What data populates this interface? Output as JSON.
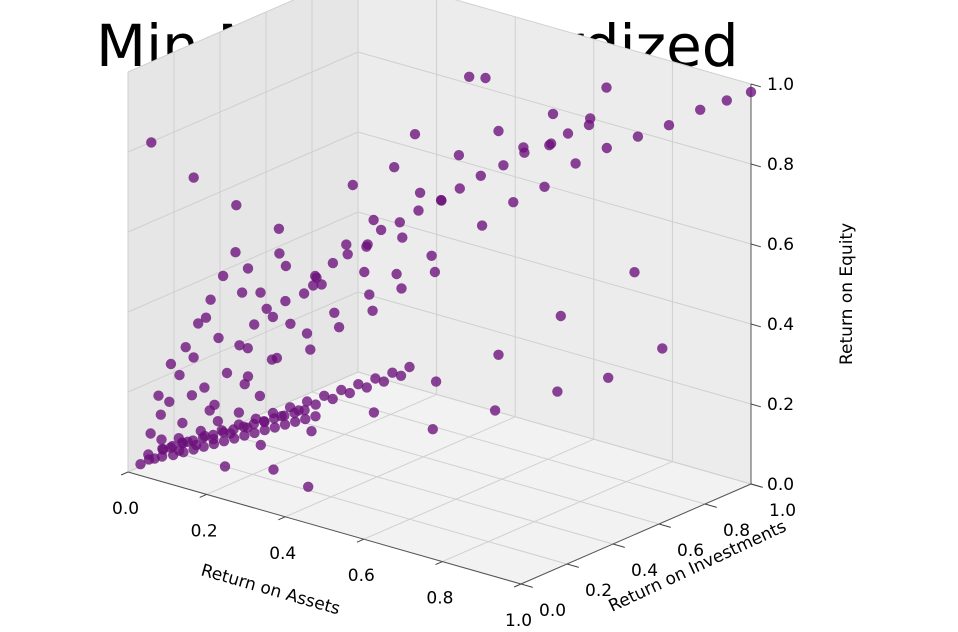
{
  "chart_data": {
    "type": "scatter",
    "projection": "3d",
    "title": "Min Max Standardized",
    "xlabel": "Return on Assets",
    "ylabel": "Return on Investments",
    "zlabel": "Return on Equity",
    "xlim": [
      0,
      1
    ],
    "ylim": [
      0,
      1
    ],
    "zlim": [
      0,
      1
    ],
    "grid": true,
    "marker_color": "#6a0f7a",
    "pane_color": "#f2f2f2",
    "grid_color": "#d0d0d0",
    "x_ticks": [
      "0.0",
      "0.2",
      "0.4",
      "0.6",
      "0.8",
      "1.0"
    ],
    "y_ticks": [
      "0.0",
      "0.2",
      "0.4",
      "0.6",
      "0.8",
      "1.0"
    ],
    "z_ticks": [
      "0.0",
      "0.2",
      "0.4",
      "0.6",
      "0.8",
      "1.0"
    ],
    "points": [
      [
        0.05,
        0.06,
        0.08
      ],
      [
        0.08,
        0.1,
        0.12
      ],
      [
        0.1,
        0.05,
        0.1
      ],
      [
        0.12,
        0.15,
        0.15
      ],
      [
        0.15,
        0.12,
        0.18
      ],
      [
        0.18,
        0.2,
        0.22
      ],
      [
        0.2,
        0.18,
        0.25
      ],
      [
        0.22,
        0.25,
        0.28
      ],
      [
        0.25,
        0.22,
        0.3
      ],
      [
        0.28,
        0.3,
        0.35
      ],
      [
        0.3,
        0.28,
        0.32
      ],
      [
        0.32,
        0.35,
        0.4
      ],
      [
        0.35,
        0.32,
        0.38
      ],
      [
        0.38,
        0.4,
        0.45
      ],
      [
        0.4,
        0.38,
        0.42
      ],
      [
        0.42,
        0.45,
        0.5
      ],
      [
        0.45,
        0.42,
        0.48
      ],
      [
        0.48,
        0.5,
        0.55
      ],
      [
        0.5,
        0.48,
        0.52
      ],
      [
        0.55,
        0.6,
        0.62
      ],
      [
        0.6,
        0.65,
        0.68
      ],
      [
        0.65,
        0.7,
        0.72
      ],
      [
        0.7,
        0.75,
        0.78
      ],
      [
        0.75,
        0.8,
        0.82
      ],
      [
        0.8,
        0.85,
        0.85
      ],
      [
        0.85,
        0.9,
        0.88
      ],
      [
        0.9,
        0.95,
        0.92
      ],
      [
        0.95,
        0.98,
        0.95
      ],
      [
        1.0,
        1.0,
        0.98
      ],
      [
        0.12,
        0.6,
        0.35
      ],
      [
        0.2,
        0.7,
        0.45
      ],
      [
        0.3,
        0.85,
        0.55
      ],
      [
        0.45,
        0.95,
        0.7
      ],
      [
        0.55,
        0.9,
        0.75
      ],
      [
        0.62,
        0.95,
        0.82
      ],
      [
        0.15,
        0.4,
        0.55
      ],
      [
        0.1,
        0.3,
        0.62
      ],
      [
        0.05,
        0.2,
        0.7
      ],
      [
        0.25,
        0.55,
        0.65
      ],
      [
        0.35,
        0.65,
        0.78
      ],
      [
        0.4,
        0.8,
        0.9
      ],
      [
        0.5,
        0.7,
        0.95
      ],
      [
        0.18,
        0.85,
        0.6
      ],
      [
        0.08,
        0.55,
        0.4
      ],
      [
        0.03,
        0.05,
        0.82
      ],
      [
        0.6,
        0.3,
        0.2
      ],
      [
        0.7,
        0.4,
        0.25
      ],
      [
        0.8,
        0.5,
        0.3
      ],
      [
        0.9,
        0.55,
        0.35
      ],
      [
        0.95,
        0.7,
        0.4
      ],
      [
        0.85,
        0.75,
        0.55
      ],
      [
        0.75,
        0.6,
        0.45
      ],
      [
        0.65,
        0.5,
        0.35
      ],
      [
        0.55,
        0.4,
        0.28
      ],
      [
        0.45,
        0.3,
        0.2
      ],
      [
        0.35,
        0.2,
        0.15
      ],
      [
        0.25,
        0.15,
        0.1
      ],
      [
        0.4,
        0.1,
        0.05
      ],
      [
        0.3,
        0.12,
        0.06
      ],
      [
        0.2,
        0.08,
        0.05
      ],
      [
        0.22,
        0.12,
        0.48
      ],
      [
        0.28,
        0.18,
        0.58
      ],
      [
        0.33,
        0.25,
        0.52
      ],
      [
        0.38,
        0.3,
        0.6
      ],
      [
        0.42,
        0.35,
        0.66
      ],
      [
        0.48,
        0.45,
        0.72
      ],
      [
        0.52,
        0.55,
        0.8
      ],
      [
        0.58,
        0.62,
        0.86
      ],
      [
        0.66,
        0.72,
        0.9
      ],
      [
        0.72,
        0.85,
        0.95
      ],
      [
        0.12,
        0.08,
        0.3
      ],
      [
        0.14,
        0.1,
        0.4
      ],
      [
        0.16,
        0.12,
        0.35
      ],
      [
        0.09,
        0.07,
        0.25
      ],
      [
        0.11,
        0.09,
        0.2
      ],
      [
        0.06,
        0.04,
        0.15
      ],
      [
        0.04,
        0.03,
        0.1
      ],
      [
        0.07,
        0.06,
        0.18
      ],
      [
        0.13,
        0.11,
        0.22
      ],
      [
        0.17,
        0.14,
        0.26
      ],
      [
        0.19,
        0.16,
        0.33
      ],
      [
        0.21,
        0.19,
        0.38
      ],
      [
        0.23,
        0.21,
        0.42
      ],
      [
        0.26,
        0.24,
        0.44
      ],
      [
        0.29,
        0.27,
        0.46
      ],
      [
        0.31,
        0.29,
        0.5
      ],
      [
        0.34,
        0.31,
        0.54
      ],
      [
        0.36,
        0.34,
        0.56
      ],
      [
        0.39,
        0.37,
        0.58
      ],
      [
        0.41,
        0.4,
        0.62
      ],
      [
        0.44,
        0.43,
        0.64
      ],
      [
        0.47,
        0.46,
        0.67
      ],
      [
        0.51,
        0.49,
        0.7
      ],
      [
        0.54,
        0.52,
        0.73
      ],
      [
        0.57,
        0.56,
        0.76
      ],
      [
        0.61,
        0.59,
        0.79
      ],
      [
        0.64,
        0.63,
        0.82
      ],
      [
        0.68,
        0.67,
        0.84
      ],
      [
        0.71,
        0.7,
        0.87
      ],
      [
        0.74,
        0.74,
        0.89
      ],
      [
        0.1,
        0.35,
        0.25
      ],
      [
        0.15,
        0.45,
        0.3
      ],
      [
        0.2,
        0.5,
        0.4
      ],
      [
        0.25,
        0.6,
        0.42
      ],
      [
        0.3,
        0.68,
        0.5
      ],
      [
        0.05,
        0.15,
        0.05
      ],
      [
        0.08,
        0.18,
        0.08
      ],
      [
        0.1,
        0.22,
        0.1
      ],
      [
        0.13,
        0.26,
        0.12
      ],
      [
        0.16,
        0.3,
        0.16
      ],
      [
        0.02,
        0.02,
        0.02
      ],
      [
        0.03,
        0.04,
        0.03
      ],
      [
        0.04,
        0.02,
        0.05
      ],
      [
        0.05,
        0.03,
        0.04
      ],
      [
        0.06,
        0.05,
        0.06
      ],
      [
        0.07,
        0.03,
        0.07
      ],
      [
        0.08,
        0.06,
        0.05
      ],
      [
        0.09,
        0.04,
        0.08
      ],
      [
        0.1,
        0.07,
        0.06
      ],
      [
        0.11,
        0.05,
        0.09
      ],
      [
        0.12,
        0.08,
        0.07
      ],
      [
        0.13,
        0.06,
        0.1
      ],
      [
        0.14,
        0.09,
        0.08
      ],
      [
        0.15,
        0.07,
        0.11
      ],
      [
        0.16,
        0.1,
        0.09
      ],
      [
        0.17,
        0.08,
        0.12
      ],
      [
        0.18,
        0.11,
        0.1
      ],
      [
        0.19,
        0.09,
        0.13
      ],
      [
        0.2,
        0.12,
        0.11
      ],
      [
        0.21,
        0.1,
        0.14
      ],
      [
        0.22,
        0.13,
        0.12
      ],
      [
        0.23,
        0.11,
        0.15
      ],
      [
        0.24,
        0.14,
        0.13
      ],
      [
        0.25,
        0.12,
        0.16
      ],
      [
        0.26,
        0.15,
        0.14
      ],
      [
        0.27,
        0.13,
        0.17
      ],
      [
        0.28,
        0.16,
        0.15
      ],
      [
        0.29,
        0.14,
        0.18
      ],
      [
        0.3,
        0.17,
        0.16
      ],
      [
        0.31,
        0.15,
        0.19
      ],
      [
        0.32,
        0.18,
        0.17
      ],
      [
        0.33,
        0.16,
        0.2
      ],
      [
        0.34,
        0.19,
        0.18
      ],
      [
        0.35,
        0.17,
        0.21
      ],
      [
        0.36,
        0.2,
        0.19
      ],
      [
        0.04,
        0.08,
        0.03
      ],
      [
        0.05,
        0.1,
        0.05
      ],
      [
        0.06,
        0.12,
        0.04
      ],
      [
        0.07,
        0.14,
        0.06
      ],
      [
        0.08,
        0.16,
        0.05
      ],
      [
        0.09,
        0.18,
        0.07
      ],
      [
        0.1,
        0.2,
        0.06
      ],
      [
        0.11,
        0.22,
        0.08
      ],
      [
        0.12,
        0.24,
        0.07
      ],
      [
        0.13,
        0.26,
        0.09
      ],
      [
        0.14,
        0.28,
        0.08
      ],
      [
        0.15,
        0.3,
        0.1
      ],
      [
        0.16,
        0.32,
        0.09
      ],
      [
        0.17,
        0.34,
        0.11
      ],
      [
        0.18,
        0.36,
        0.1
      ],
      [
        0.19,
        0.38,
        0.12
      ],
      [
        0.2,
        0.4,
        0.11
      ],
      [
        0.21,
        0.42,
        0.13
      ],
      [
        0.22,
        0.44,
        0.12
      ],
      [
        0.23,
        0.46,
        0.14
      ],
      [
        0.24,
        0.48,
        0.13
      ],
      [
        0.25,
        0.5,
        0.15
      ],
      [
        0.26,
        0.52,
        0.14
      ],
      [
        0.27,
        0.54,
        0.16
      ],
      [
        0.28,
        0.56,
        0.15
      ],
      [
        0.29,
        0.58,
        0.17
      ],
      [
        0.3,
        0.6,
        0.16
      ],
      [
        0.31,
        0.62,
        0.18
      ],
      [
        0.32,
        0.64,
        0.17
      ],
      [
        0.33,
        0.66,
        0.19
      ],
      [
        0.06,
        0.03,
        0.2
      ],
      [
        0.08,
        0.05,
        0.28
      ],
      [
        0.1,
        0.08,
        0.32
      ],
      [
        0.12,
        0.1,
        0.38
      ],
      [
        0.14,
        0.12,
        0.44
      ],
      [
        0.16,
        0.14,
        0.5
      ],
      [
        0.18,
        0.16,
        0.56
      ],
      [
        0.2,
        0.18,
        0.52
      ],
      [
        0.22,
        0.2,
        0.46
      ],
      [
        0.24,
        0.22,
        0.4
      ]
    ]
  }
}
